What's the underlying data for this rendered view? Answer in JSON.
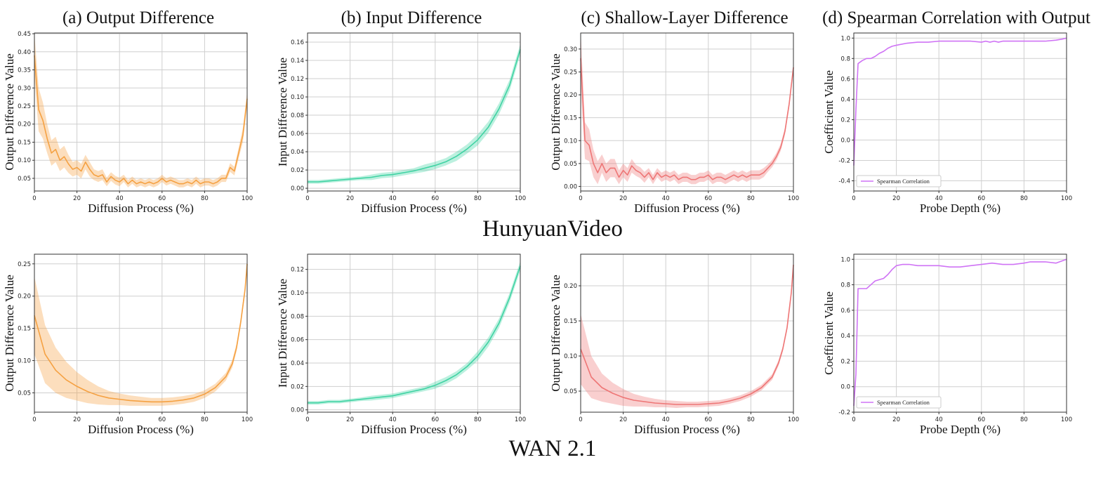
{
  "row_titles": [
    "HunyuanVideo",
    "WAN 2.1"
  ],
  "panel_titles": [
    "(a) Output Difference",
    "(b) Input Difference",
    "(c) Shallow-Layer Difference",
    "(d) Spearman Correlation with Output"
  ],
  "colors": {
    "orange": "#f5a142",
    "green": "#3fd3a3",
    "red": "#ee7676",
    "purple": "#cf73f5"
  },
  "chart_data": [
    {
      "id": "hy-a",
      "type": "line",
      "xlabel": "Diffusion Process (%)",
      "ylabel": "Output Difference Value",
      "xlim": [
        0,
        100
      ],
      "ylim": [
        0.015,
        0.452
      ],
      "xticks": [
        0,
        20,
        40,
        60,
        80,
        100
      ],
      "yticks": [
        0.05,
        0.1,
        0.15,
        0.2,
        0.25,
        0.3,
        0.35,
        0.4,
        0.45
      ],
      "ydec": 2,
      "color": "orange",
      "band": true,
      "grid": true,
      "series": [
        {
          "x": [
            0,
            2,
            4,
            6,
            8,
            10,
            12,
            14,
            16,
            18,
            20,
            22,
            24,
            26,
            28,
            30,
            32,
            34,
            36,
            38,
            40,
            42,
            44,
            46,
            48,
            50,
            52,
            54,
            56,
            58,
            60,
            62,
            64,
            66,
            68,
            70,
            72,
            74,
            76,
            78,
            80,
            82,
            84,
            86,
            88,
            90,
            92,
            94,
            96,
            98,
            100
          ],
          "y": [
            0.39,
            0.24,
            0.21,
            0.16,
            0.12,
            0.13,
            0.1,
            0.11,
            0.09,
            0.075,
            0.08,
            0.07,
            0.095,
            0.075,
            0.06,
            0.055,
            0.06,
            0.04,
            0.055,
            0.045,
            0.04,
            0.05,
            0.035,
            0.045,
            0.035,
            0.04,
            0.035,
            0.04,
            0.035,
            0.04,
            0.05,
            0.04,
            0.045,
            0.04,
            0.035,
            0.035,
            0.04,
            0.035,
            0.045,
            0.035,
            0.04,
            0.04,
            0.035,
            0.04,
            0.05,
            0.05,
            0.08,
            0.07,
            0.12,
            0.17,
            0.27
          ],
          "w": [
            0.06,
            0.06,
            0.05,
            0.04,
            0.035,
            0.035,
            0.03,
            0.03,
            0.025,
            0.02,
            0.02,
            0.02,
            0.02,
            0.02,
            0.015,
            0.015,
            0.015,
            0.012,
            0.012,
            0.012,
            0.012,
            0.01,
            0.01,
            0.01,
            0.01,
            0.01,
            0.01,
            0.01,
            0.01,
            0.01,
            0.01,
            0.01,
            0.01,
            0.01,
            0.01,
            0.01,
            0.01,
            0.01,
            0.01,
            0.01,
            0.01,
            0.01,
            0.01,
            0.01,
            0.01,
            0.01,
            0.012,
            0.012,
            0.015,
            0.02,
            0.02
          ]
        }
      ]
    },
    {
      "id": "hy-b",
      "type": "line",
      "xlabel": "Diffusion Process (%)",
      "ylabel": "Input Difference Value",
      "xlim": [
        0,
        100
      ],
      "ylim": [
        -0.003,
        0.17
      ],
      "xticks": [
        0,
        20,
        40,
        60,
        80,
        100
      ],
      "yticks": [
        0,
        0.02,
        0.04,
        0.06,
        0.08,
        0.1,
        0.12,
        0.14,
        0.16
      ],
      "ydec": 2,
      "color": "green",
      "band": true,
      "grid": true,
      "series": [
        {
          "x": [
            0,
            5,
            10,
            15,
            20,
            25,
            30,
            35,
            40,
            45,
            50,
            55,
            60,
            65,
            70,
            75,
            80,
            85,
            90,
            95,
            100
          ],
          "y": [
            0.007,
            0.007,
            0.008,
            0.009,
            0.01,
            0.011,
            0.012,
            0.014,
            0.015,
            0.017,
            0.019,
            0.022,
            0.025,
            0.029,
            0.035,
            0.043,
            0.053,
            0.067,
            0.087,
            0.113,
            0.152
          ],
          "w": [
            0.002,
            0.002,
            0.002,
            0.002,
            0.002,
            0.002,
            0.003,
            0.003,
            0.003,
            0.003,
            0.003,
            0.004,
            0.004,
            0.004,
            0.005,
            0.005,
            0.006,
            0.006,
            0.006,
            0.006,
            0.006
          ]
        }
      ]
    },
    {
      "id": "hy-c",
      "type": "line",
      "xlabel": "Diffusion Process (%)",
      "ylabel": "Output Difference Value",
      "xlim": [
        0,
        100
      ],
      "ylim": [
        -0.01,
        0.335
      ],
      "xticks": [
        0,
        20,
        40,
        60,
        80,
        100
      ],
      "yticks": [
        0,
        0.05,
        0.1,
        0.15,
        0.2,
        0.25,
        0.3
      ],
      "ydec": 2,
      "color": "red",
      "band": true,
      "grid": true,
      "series": [
        {
          "x": [
            0,
            2,
            4,
            6,
            8,
            10,
            12,
            14,
            16,
            18,
            20,
            22,
            24,
            26,
            28,
            30,
            32,
            34,
            36,
            38,
            40,
            42,
            44,
            46,
            48,
            50,
            52,
            54,
            56,
            58,
            60,
            62,
            64,
            66,
            68,
            70,
            72,
            74,
            76,
            78,
            80,
            82,
            84,
            86,
            88,
            90,
            92,
            94,
            96,
            98,
            100
          ],
          "y": [
            0.28,
            0.1,
            0.09,
            0.05,
            0.03,
            0.05,
            0.03,
            0.04,
            0.04,
            0.02,
            0.035,
            0.025,
            0.045,
            0.035,
            0.03,
            0.02,
            0.03,
            0.015,
            0.03,
            0.02,
            0.025,
            0.02,
            0.025,
            0.015,
            0.02,
            0.02,
            0.015,
            0.015,
            0.02,
            0.02,
            0.025,
            0.015,
            0.02,
            0.02,
            0.015,
            0.02,
            0.025,
            0.02,
            0.025,
            0.02,
            0.025,
            0.025,
            0.025,
            0.03,
            0.04,
            0.05,
            0.065,
            0.085,
            0.12,
            0.18,
            0.26
          ],
          "w": [
            0.06,
            0.04,
            0.035,
            0.03,
            0.025,
            0.02,
            0.02,
            0.02,
            0.02,
            0.015,
            0.015,
            0.015,
            0.015,
            0.012,
            0.012,
            0.012,
            0.01,
            0.01,
            0.01,
            0.01,
            0.01,
            0.01,
            0.01,
            0.01,
            0.01,
            0.01,
            0.01,
            0.01,
            0.01,
            0.01,
            0.01,
            0.01,
            0.01,
            0.01,
            0.01,
            0.01,
            0.01,
            0.01,
            0.01,
            0.01,
            0.01,
            0.01,
            0.01,
            0.01,
            0.008,
            0.008,
            0.008,
            0.008,
            0.008,
            0.008,
            0.008
          ]
        }
      ]
    },
    {
      "id": "hy-d",
      "type": "line",
      "xlabel": "Probe Depth (%)",
      "ylabel": "Coefficient Value",
      "xlim": [
        0,
        100
      ],
      "ylim": [
        -0.5,
        1.05
      ],
      "xticks": [
        0,
        20,
        40,
        60,
        80,
        100
      ],
      "yticks": [
        -0.4,
        -0.2,
        0,
        0.2,
        0.4,
        0.6,
        0.8,
        1.0
      ],
      "ydec": 1,
      "color": "purple",
      "band": false,
      "grid": true,
      "legend": "Spearman Correlation",
      "legend_loc": "lower left",
      "series": [
        {
          "name": "Spearman Correlation",
          "x": [
            0,
            1,
            2,
            4,
            6,
            8,
            10,
            12,
            14,
            16,
            18,
            20,
            25,
            30,
            35,
            40,
            45,
            50,
            55,
            60,
            62,
            64,
            66,
            68,
            70,
            75,
            80,
            85,
            90,
            95,
            98,
            100
          ],
          "y": [
            -0.25,
            0.3,
            0.75,
            0.78,
            0.8,
            0.8,
            0.82,
            0.85,
            0.87,
            0.9,
            0.92,
            0.93,
            0.95,
            0.96,
            0.96,
            0.97,
            0.97,
            0.97,
            0.97,
            0.96,
            0.97,
            0.96,
            0.97,
            0.96,
            0.97,
            0.97,
            0.97,
            0.97,
            0.97,
            0.98,
            0.99,
            1.0
          ]
        }
      ]
    },
    {
      "id": "wan-a",
      "type": "line",
      "xlabel": "Diffusion Process (%)",
      "ylabel": "Output Difference Value",
      "xlim": [
        0,
        100
      ],
      "ylim": [
        0.02,
        0.265
      ],
      "xticks": [
        0,
        20,
        40,
        60,
        80,
        100
      ],
      "yticks": [
        0.05,
        0.1,
        0.15,
        0.2,
        0.25
      ],
      "ydec": 2,
      "color": "orange",
      "band": true,
      "grid": true,
      "series": [
        {
          "x": [
            0,
            5,
            10,
            15,
            20,
            25,
            30,
            35,
            40,
            45,
            50,
            55,
            60,
            65,
            70,
            75,
            80,
            85,
            90,
            93,
            95,
            97,
            99,
            100
          ],
          "y": [
            0.17,
            0.11,
            0.085,
            0.07,
            0.06,
            0.052,
            0.046,
            0.042,
            0.04,
            0.038,
            0.037,
            0.036,
            0.036,
            0.037,
            0.039,
            0.042,
            0.048,
            0.058,
            0.075,
            0.095,
            0.12,
            0.16,
            0.21,
            0.25
          ],
          "w": [
            0.06,
            0.045,
            0.035,
            0.028,
            0.022,
            0.018,
            0.014,
            0.011,
            0.009,
            0.008,
            0.007,
            0.006,
            0.006,
            0.006,
            0.006,
            0.006,
            0.006,
            0.006,
            0.006,
            0.006,
            0.006,
            0.006,
            0.006,
            0.006
          ]
        }
      ]
    },
    {
      "id": "wan-b",
      "type": "line",
      "xlabel": "Diffusion Process (%)",
      "ylabel": "Input Difference Value",
      "xlim": [
        0,
        100
      ],
      "ylim": [
        -0.002,
        0.133
      ],
      "xticks": [
        0,
        20,
        40,
        60,
        80,
        100
      ],
      "yticks": [
        0,
        0.02,
        0.04,
        0.06,
        0.08,
        0.1,
        0.12
      ],
      "ydec": 2,
      "color": "green",
      "band": true,
      "grid": true,
      "series": [
        {
          "x": [
            0,
            5,
            10,
            15,
            20,
            25,
            30,
            35,
            40,
            45,
            50,
            55,
            60,
            65,
            70,
            75,
            80,
            85,
            90,
            95,
            100
          ],
          "y": [
            0.006,
            0.006,
            0.007,
            0.007,
            0.008,
            0.009,
            0.01,
            0.011,
            0.012,
            0.014,
            0.016,
            0.018,
            0.021,
            0.025,
            0.03,
            0.037,
            0.046,
            0.058,
            0.074,
            0.096,
            0.123
          ],
          "w": [
            0.0015,
            0.0015,
            0.0015,
            0.0015,
            0.0015,
            0.0015,
            0.002,
            0.002,
            0.002,
            0.002,
            0.002,
            0.002,
            0.003,
            0.003,
            0.003,
            0.003,
            0.004,
            0.004,
            0.004,
            0.004,
            0.004
          ]
        }
      ]
    },
    {
      "id": "wan-c",
      "type": "line",
      "xlabel": "Diffusion Process (%)",
      "ylabel": "Output Difference Value",
      "xlim": [
        0,
        100
      ],
      "ylim": [
        0.02,
        0.245
      ],
      "xticks": [
        0,
        20,
        40,
        60,
        80,
        100
      ],
      "yticks": [
        0.05,
        0.1,
        0.15,
        0.2
      ],
      "ydec": 2,
      "color": "red",
      "band": true,
      "grid": true,
      "series": [
        {
          "x": [
            0,
            5,
            10,
            15,
            20,
            25,
            30,
            35,
            40,
            45,
            50,
            55,
            60,
            65,
            70,
            75,
            80,
            85,
            90,
            93,
            95,
            97,
            99,
            100
          ],
          "y": [
            0.11,
            0.07,
            0.055,
            0.047,
            0.041,
            0.037,
            0.035,
            0.033,
            0.032,
            0.031,
            0.031,
            0.031,
            0.032,
            0.033,
            0.036,
            0.04,
            0.046,
            0.055,
            0.07,
            0.09,
            0.11,
            0.14,
            0.19,
            0.23
          ],
          "w": [
            0.05,
            0.03,
            0.02,
            0.015,
            0.012,
            0.009,
            0.007,
            0.006,
            0.005,
            0.005,
            0.004,
            0.004,
            0.004,
            0.004,
            0.004,
            0.004,
            0.004,
            0.004,
            0.004,
            0.004,
            0.004,
            0.004,
            0.004,
            0.004
          ]
        }
      ]
    },
    {
      "id": "wan-d",
      "type": "line",
      "xlabel": "Probe Depth (%)",
      "ylabel": "Coefficient Value",
      "xlim": [
        0,
        100
      ],
      "ylim": [
        -0.2,
        1.04
      ],
      "xticks": [
        0,
        20,
        40,
        60,
        80,
        100
      ],
      "yticks": [
        -0.2,
        0,
        0.2,
        0.4,
        0.6,
        0.8,
        1.0
      ],
      "ydec": 1,
      "color": "purple",
      "band": false,
      "grid": true,
      "legend": "Spearman Correlation",
      "legend_loc": "lower left",
      "series": [
        {
          "name": "Spearman Correlation",
          "x": [
            0,
            1,
            2,
            4,
            6,
            8,
            10,
            12,
            14,
            16,
            18,
            20,
            23,
            26,
            30,
            35,
            40,
            45,
            50,
            55,
            60,
            65,
            70,
            75,
            80,
            83,
            86,
            90,
            95,
            100
          ],
          "y": [
            -0.15,
            0.1,
            0.77,
            0.77,
            0.77,
            0.8,
            0.83,
            0.84,
            0.85,
            0.88,
            0.92,
            0.95,
            0.96,
            0.96,
            0.95,
            0.95,
            0.95,
            0.94,
            0.94,
            0.95,
            0.96,
            0.97,
            0.96,
            0.96,
            0.97,
            0.98,
            0.98,
            0.98,
            0.97,
            1.0
          ]
        }
      ]
    }
  ]
}
